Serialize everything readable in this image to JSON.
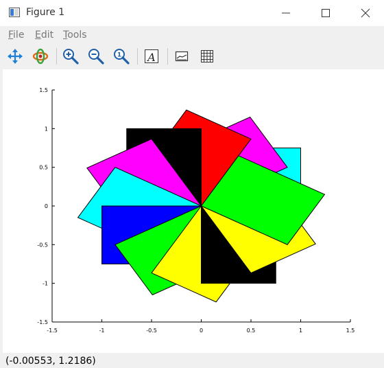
{
  "window": {
    "title": "Figure 1",
    "minimize_icon": "minimize-icon",
    "maximize_icon": "maximize-icon",
    "close_icon": "close-icon"
  },
  "menu": {
    "file": {
      "accel": "F",
      "rest": "ile"
    },
    "edit": {
      "accel": "E",
      "rest": "dit"
    },
    "tools": {
      "accel": "T",
      "rest": "ools"
    }
  },
  "toolbar": {
    "tools": [
      "pan-icon",
      "rotate-icon",
      "zoom-in-icon",
      "zoom-out-icon",
      "zoom-reset-icon",
      "text-icon",
      "axes-box-icon",
      "grid-icon"
    ]
  },
  "status": {
    "coordinates": "(-0.00553, 1.2186)"
  },
  "chart_data": {
    "type": "polygon-fill",
    "title": "",
    "xlabel": "",
    "ylabel": "",
    "xlim": [
      -1.5,
      1.5
    ],
    "ylim": [
      -1.5,
      1.5
    ],
    "x_ticks": [
      "-1.5",
      "-1",
      "-0.5",
      "0",
      "0.5",
      "1",
      "1.5"
    ],
    "y_ticks": [
      "1.5",
      "1",
      "0.5",
      "0",
      "-0.5",
      "-1",
      "-1.5"
    ],
    "grid": false,
    "rectangle": {
      "width": 1,
      "height": 0.75
    },
    "rotation_step_deg": 30,
    "series": [
      {
        "angle": 0,
        "color": "#00ffff"
      },
      {
        "angle": 30,
        "color": "#ff00ff"
      },
      {
        "angle": 60,
        "color": "#ff0000"
      },
      {
        "angle": 90,
        "color": "#000000"
      },
      {
        "angle": 120,
        "color": "#ff00ff"
      },
      {
        "angle": 150,
        "color": "#00ffff"
      },
      {
        "angle": 180,
        "color": "#0000ff"
      },
      {
        "angle": 210,
        "color": "#00ff00"
      },
      {
        "angle": 240,
        "color": "#ffff00"
      },
      {
        "angle": 270,
        "color": "#000000"
      },
      {
        "angle": 300,
        "color": "#ffff00"
      },
      {
        "angle": 330,
        "color": "#00ff00"
      }
    ]
  }
}
